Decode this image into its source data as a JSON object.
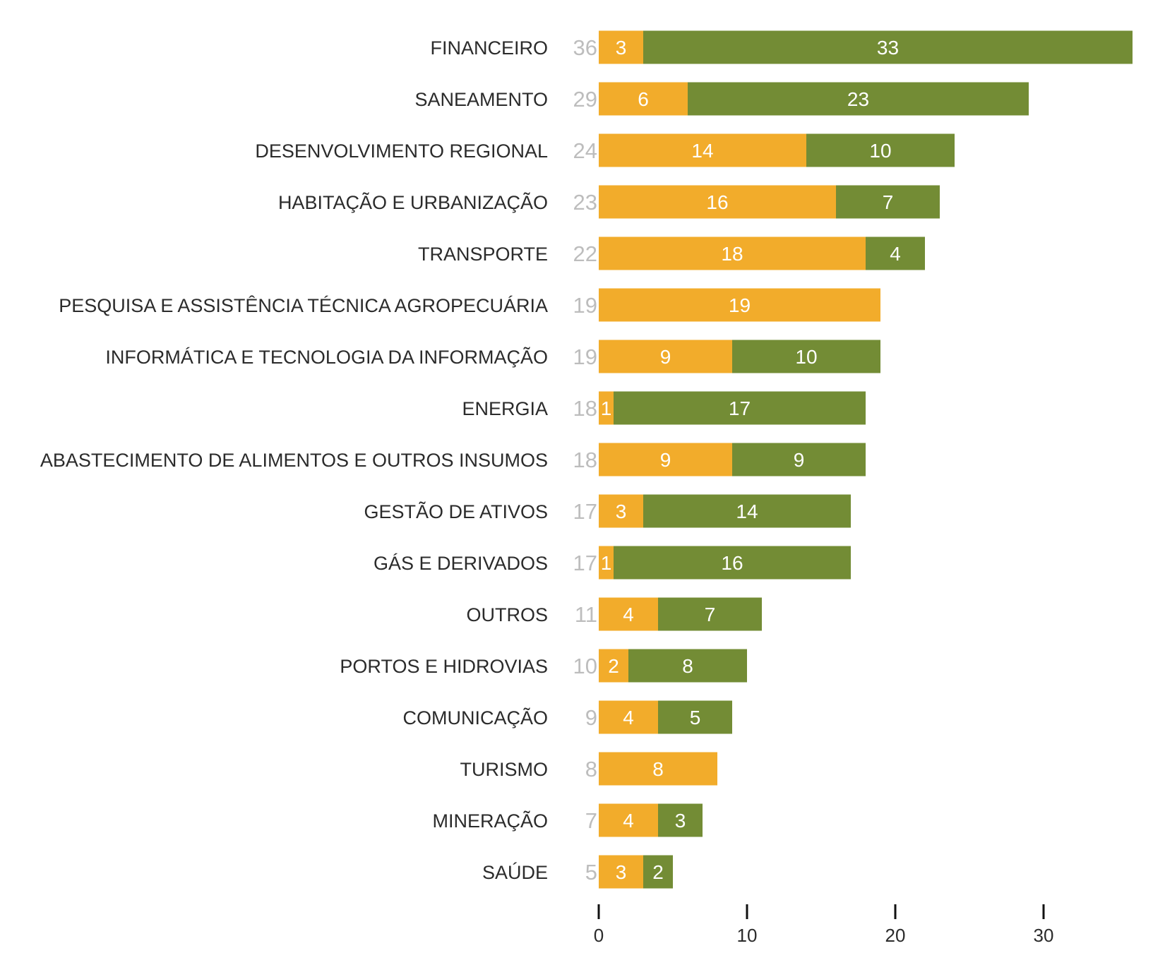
{
  "chart_data": {
    "type": "bar",
    "orientation": "horizontal",
    "stacked": true,
    "title": "",
    "xlabel": "",
    "ylabel": "",
    "xlim": [
      0,
      36
    ],
    "xticks": [
      0,
      10,
      20,
      30
    ],
    "grid": false,
    "legend": "none",
    "colors": [
      "#F2AC2B",
      "#738C35"
    ],
    "total_color": "#BDBDBD",
    "categories": [
      "FINANCEIRO",
      "SANEAMENTO",
      "DESENVOLVIMENTO REGIONAL",
      "HABITAÇÃO E URBANIZAÇÃO",
      "TRANSPORTE",
      "PESQUISA E ASSISTÊNCIA TÉCNICA AGROPECUÁRIA",
      "INFORMÁTICA E TECNOLOGIA DA INFORMAÇÃO",
      "ENERGIA",
      "ABASTECIMENTO DE ALIMENTOS E OUTROS INSUMOS",
      "GESTÃO DE ATIVOS",
      "GÁS E DERIVADOS",
      "OUTROS",
      "PORTOS E HIDROVIAS",
      "COMUNICAÇÃO",
      "TURISMO",
      "MINERAÇÃO",
      "SAÚDE"
    ],
    "totals": [
      36,
      29,
      24,
      23,
      22,
      19,
      19,
      18,
      18,
      17,
      17,
      11,
      10,
      9,
      8,
      7,
      5
    ],
    "series": [
      {
        "values": [
          3,
          6,
          14,
          16,
          18,
          19,
          9,
          1,
          9,
          3,
          1,
          4,
          2,
          4,
          8,
          4,
          3
        ]
      },
      {
        "values": [
          33,
          23,
          10,
          7,
          4,
          0,
          10,
          17,
          9,
          14,
          16,
          7,
          8,
          5,
          0,
          3,
          2
        ]
      }
    ]
  }
}
